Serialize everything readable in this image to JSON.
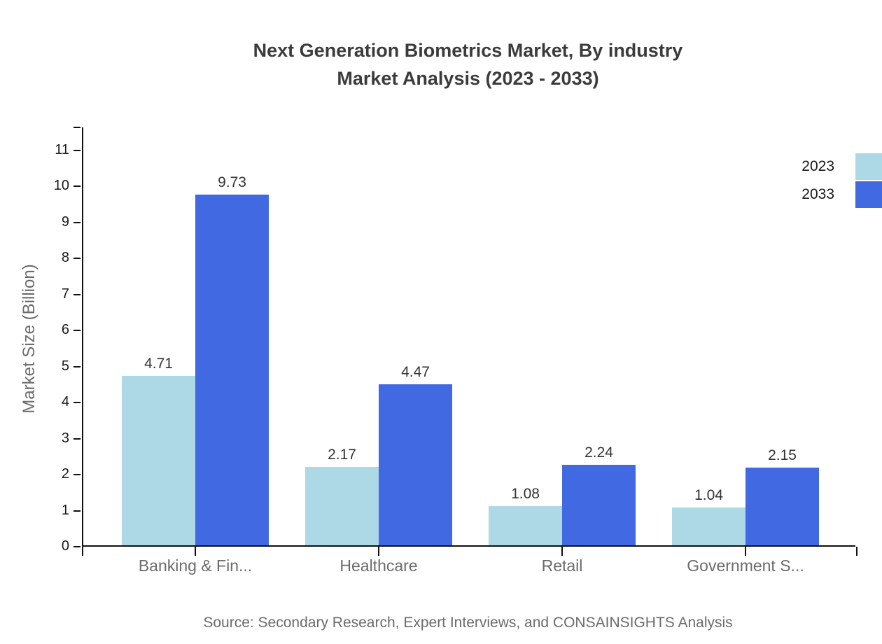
{
  "title": {
    "line1": "Next Generation Biometrics Market, By industry",
    "line2": "Market Analysis (2023 - 2033)"
  },
  "source": "Source: Secondary Research, Expert Interviews, and CONSAINSIGHTS Analysis",
  "colors": {
    "series_2023": "#ADD8E6",
    "series_2033": "#4169E1",
    "axis": "#111111",
    "title_text": "#3b3b3b",
    "category_text": "#6b6b6b",
    "value_text": "#333333"
  },
  "legend": {
    "items": [
      {
        "label": "2023",
        "color": "#ADD8E6"
      },
      {
        "label": "2033",
        "color": "#4169E1"
      }
    ],
    "position": "top-right"
  },
  "chart_data": {
    "type": "bar",
    "title": "Next Generation Biometrics Market, By industry Market Analysis (2023 - 2033)",
    "categories": [
      "Banking & Fin...",
      "Healthcare",
      "Retail",
      "Government S..."
    ],
    "series": [
      {
        "name": "2023",
        "color": "#ADD8E6",
        "values": [
          4.71,
          2.17,
          1.08,
          1.04
        ]
      },
      {
        "name": "2033",
        "color": "#4169E1",
        "values": [
          9.73,
          4.47,
          2.24,
          2.15
        ]
      }
    ],
    "value_labels": [
      "4.71",
      "9.73",
      "2.17",
      "4.47",
      "1.08",
      "2.24",
      "1.04",
      "2.15"
    ],
    "xlabel": "",
    "ylabel": "Market Size (Billion)",
    "yticks": [
      0,
      1,
      2,
      3,
      4,
      5,
      6,
      7,
      8,
      9,
      10,
      11
    ],
    "ylim": [
      0,
      11.65
    ],
    "grid": false,
    "legend_position": "top-right"
  }
}
